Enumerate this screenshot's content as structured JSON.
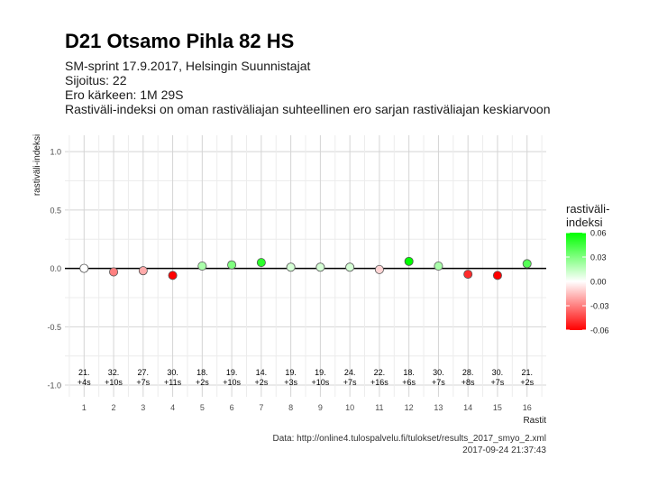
{
  "header": {
    "title": "D21 Otsamo Pihla 82 HS",
    "subtitle_lines": [
      "SM-sprint 17.9.2017, Helsingin Suunnistajat",
      "Sijoitus: 22",
      "Ero kärkeen: 1M 29S",
      "Rastiväli-indeksi on oman rastiväliajan suhteellinen ero sarjan rastiväliajan keskiarvoon"
    ]
  },
  "chart_data": {
    "type": "scatter",
    "xlabel": "Rastit",
    "ylabel": "rastiväli-indeksi",
    "ylim": [
      -1.0,
      1.0
    ],
    "y_ticks": [
      "1.0",
      "0.5",
      "0.0",
      "-0.5",
      "-1.0"
    ],
    "y_tick_values": [
      1.0,
      0.5,
      0.0,
      -0.5,
      -1.0
    ],
    "x_ticks": [
      "1",
      "2",
      "3",
      "4",
      "5",
      "6",
      "7",
      "8",
      "9",
      "10",
      "11",
      "12",
      "13",
      "14",
      "15",
      "16"
    ],
    "x": [
      1,
      2,
      3,
      4,
      5,
      6,
      7,
      8,
      9,
      10,
      11,
      12,
      13,
      14,
      15,
      16
    ],
    "y": [
      0.0,
      -0.03,
      -0.02,
      -0.06,
      0.02,
      0.03,
      0.05,
      0.01,
      0.01,
      0.01,
      -0.01,
      0.06,
      0.02,
      -0.05,
      -0.06,
      0.04
    ],
    "rank_labels": [
      "21.",
      "32.",
      "27.",
      "30.",
      "18.",
      "19.",
      "14.",
      "19.",
      "19.",
      "24.",
      "22.",
      "18.",
      "30.",
      "28.",
      "30.",
      "21."
    ],
    "diff_labels": [
      "+4s",
      "+10s",
      "+7s",
      "+11s",
      "+2s",
      "+10s",
      "+2s",
      "+3s",
      "+10s",
      "+7s",
      "+16s",
      "+6s",
      "+7s",
      "+8s",
      "+7s",
      "+2s"
    ],
    "grid": true,
    "legend": {
      "title_lines": [
        "rastiväli-",
        "indeksi"
      ],
      "ticks": [
        "0.06",
        "0.03",
        "0.00",
        "-0.03",
        "-0.06"
      ],
      "tick_values": [
        0.06,
        0.03,
        0.0,
        -0.03,
        -0.06
      ],
      "placement": "right",
      "color_high": "#00ff00",
      "color_mid": "#ffffff",
      "color_low": "#ff0000"
    }
  },
  "footer": {
    "source": "Data: http://online4.tulospalvelu.fi/tulokset/results_2017_smyo_2.xml",
    "timestamp": "2017-09-24 21:37:43"
  }
}
